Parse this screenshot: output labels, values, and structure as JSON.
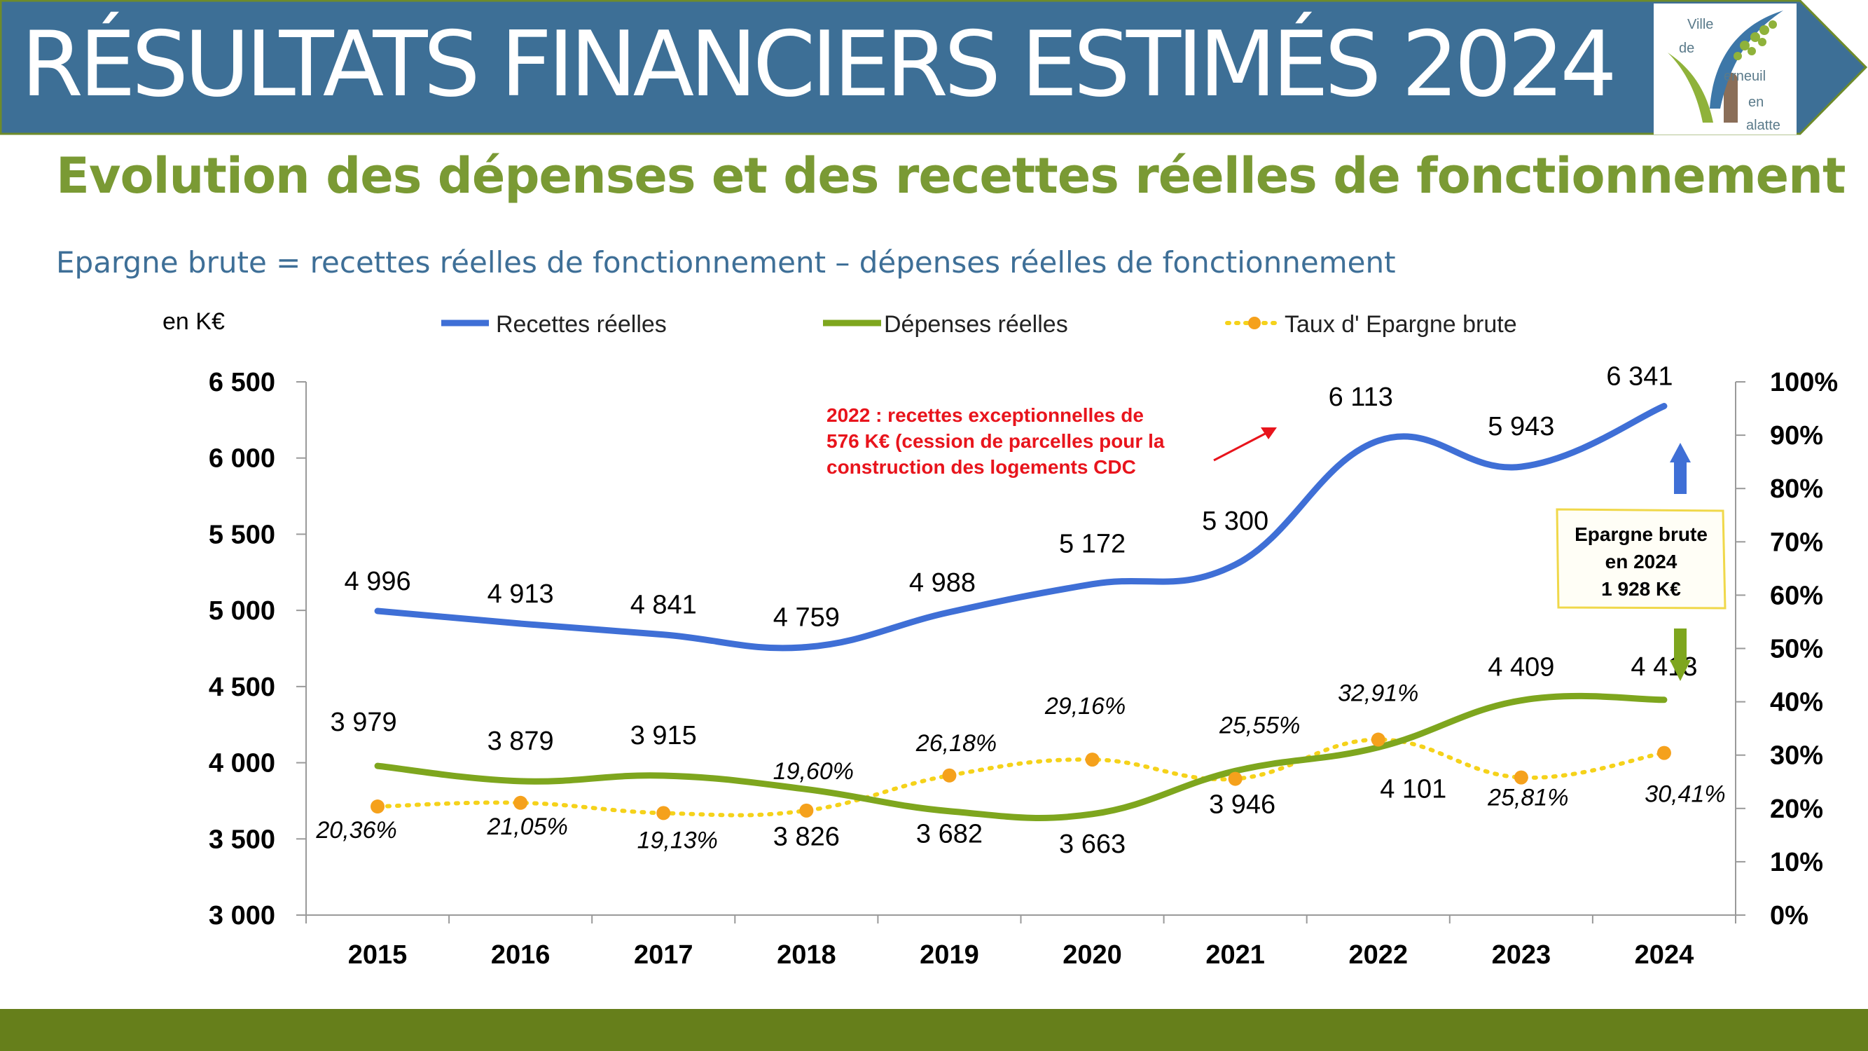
{
  "header": {
    "title": "RÉSULTATS FINANCIERS ESTIMÉS 2024",
    "logo_text": [
      "Ville",
      "de",
      "erneuil",
      "en",
      "alatte"
    ]
  },
  "subtitle": "Evolution des dépenses et des recettes réelles de fonctionnement",
  "formula": "Epargne brute = recettes réelles de fonctionnement – dépenses réelles de fonctionnement",
  "colors": {
    "banner": "#3d6f96",
    "banner_border": "#6e8b2a",
    "recettes": "#3f6fd6",
    "depenses": "#7ea61e",
    "taux_line": "#f5d21a",
    "taux_marker": "#f5a11c",
    "note": "#e8141c",
    "callout_border": "#f0d84a",
    "footer": "#667f1b"
  },
  "chart_data": {
    "type": "line",
    "unit_label": "en K€",
    "categories": [
      "2015",
      "2016",
      "2017",
      "2018",
      "2019",
      "2020",
      "2021",
      "2022",
      "2023",
      "2024"
    ],
    "ylim": [
      3000,
      6500
    ],
    "yticks": [
      "3 000",
      "3 500",
      "4 000",
      "4 500",
      "5 000",
      "5 500",
      "6 000",
      "6 500"
    ],
    "y2lim": [
      0,
      100
    ],
    "y2ticks": [
      "0%",
      "10%",
      "20%",
      "30%",
      "40%",
      "50%",
      "60%",
      "70%",
      "80%",
      "90%",
      "100%"
    ],
    "legend_position": "top",
    "series": [
      {
        "name": "Recettes réelles",
        "axis": "left",
        "values": [
          4996,
          4913,
          4841,
          4759,
          4988,
          5172,
          5300,
          6113,
          5943,
          6341
        ],
        "labels": [
          "4 996",
          "4 913",
          "4 841",
          "4 759",
          "4 988",
          "5 172",
          "5 300",
          "6 113",
          "5 943",
          "6 341"
        ]
      },
      {
        "name": "Dépenses réelles",
        "axis": "left",
        "values": [
          3979,
          3879,
          3915,
          3826,
          3682,
          3663,
          3946,
          4101,
          4409,
          4413
        ],
        "labels": [
          "3 979",
          "3 879",
          "3 915",
          "3 826",
          "3 682",
          "3 663",
          "3 946",
          "4 101",
          "4 409",
          "4 413"
        ]
      },
      {
        "name": "Taux d' Epargne brute",
        "axis": "right",
        "values": [
          20.36,
          21.05,
          19.13,
          19.6,
          26.18,
          29.16,
          25.55,
          32.91,
          25.81,
          30.41
        ],
        "labels": [
          "20,36%",
          "21,05%",
          "19,13%",
          "19,60%",
          "26,18%",
          "29,16%",
          "25,55%",
          "32,91%",
          "25,81%",
          "30,41%"
        ]
      }
    ],
    "annotations": {
      "note_lines": [
        "2022 : recettes exceptionnelles de",
        "576 K€ (cession de parcelles pour la",
        "construction des logements CDC"
      ],
      "callout_lines": [
        "Epargne brute",
        "en 2024",
        "1 928 K€"
      ]
    }
  }
}
